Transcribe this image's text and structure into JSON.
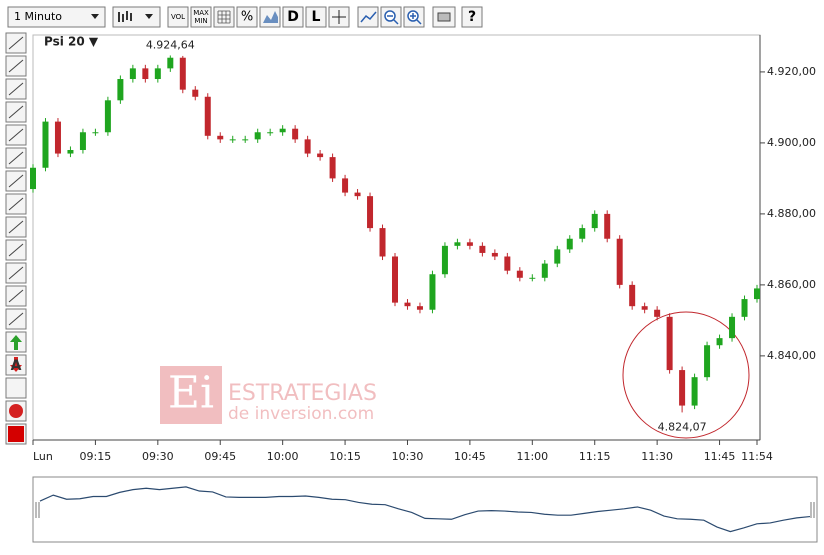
{
  "toolbar": {
    "interval": "1 Minuto",
    "buttons": [
      "VOL",
      "MAX",
      "MIN",
      "%",
      "D",
      "L",
      "?"
    ],
    "side_label": "A",
    "instrument": "Psi 20 ▼"
  },
  "watermark": {
    "logo": "Ei",
    "brand": "ESTRATEGIAS",
    "site": "de inversion.com"
  },
  "chart_data": {
    "type": "candlestick",
    "x": [
      "09:00",
      "09:03",
      "09:06",
      "09:09",
      "09:12",
      "09:15",
      "09:18",
      "09:21",
      "09:24",
      "09:27",
      "09:30",
      "09:33",
      "09:36",
      "09:39",
      "09:42",
      "09:45",
      "09:48",
      "09:51",
      "09:54",
      "09:57",
      "10:00",
      "10:03",
      "10:06",
      "10:09",
      "10:12",
      "10:15",
      "10:18",
      "10:21",
      "10:24",
      "10:27",
      "10:30",
      "10:33",
      "10:36",
      "10:39",
      "10:42",
      "10:45",
      "10:48",
      "10:51",
      "10:54",
      "10:57",
      "11:00",
      "11:03",
      "11:06",
      "11:09",
      "11:12",
      "11:15",
      "11:18",
      "11:21",
      "11:24",
      "11:27",
      "11:30",
      "11:33",
      "11:36",
      "11:39",
      "11:42",
      "11:45",
      "11:48",
      "11:51",
      "11:54"
    ],
    "open": [
      4887,
      4893,
      4906,
      4897,
      4898,
      4903,
      4903,
      4912,
      4918,
      4921,
      4918,
      4921,
      4924,
      4915,
      4913,
      4902,
      4901,
      4901,
      4901,
      4903,
      4903,
      4904,
      4901,
      4897,
      4896,
      4890,
      4886,
      4885,
      4876,
      4868,
      4855,
      4854,
      4853,
      4863,
      4871,
      4872,
      4871,
      4869,
      4868,
      4864,
      4862,
      4862,
      4866,
      4870,
      4873,
      4876,
      4880,
      4873,
      4860,
      4854,
      4853,
      4851,
      4836,
      4826,
      4834,
      4843,
      4845,
      4851,
      4856
    ],
    "high": [
      4894,
      4907,
      4907,
      4899,
      4904,
      4904,
      4913,
      4919,
      4922,
      4922,
      4922,
      4924.64,
      4924.5,
      4916,
      4914,
      4903,
      4902,
      4902,
      4904,
      4904,
      4905,
      4905,
      4902,
      4898,
      4897,
      4891,
      4887,
      4886,
      4877,
      4869,
      4856,
      4855,
      4864,
      4872,
      4873,
      4873,
      4872,
      4870,
      4869,
      4865,
      4863,
      4867,
      4871,
      4874,
      4877,
      4881,
      4881,
      4874,
      4861,
      4855,
      4854,
      4852,
      4837,
      4835,
      4844,
      4846,
      4852,
      4857,
      4860
    ],
    "low": [
      4886,
      4892,
      4896,
      4896,
      4897,
      4902,
      4902,
      4911,
      4917,
      4917,
      4917,
      4920,
      4914,
      4912,
      4901,
      4900,
      4900,
      4900,
      4900,
      4902,
      4902,
      4900,
      4896,
      4895,
      4889,
      4885,
      4884,
      4875,
      4867,
      4854,
      4853,
      4852,
      4852,
      4862,
      4870,
      4870,
      4868,
      4867,
      4863,
      4861,
      4861,
      4861,
      4865,
      4869,
      4872,
      4875,
      4872,
      4859,
      4853,
      4852,
      4850,
      4835,
      4824.07,
      4825,
      4833,
      4842,
      4844,
      4850,
      4855
    ],
    "close": [
      4893,
      4906,
      4897,
      4898,
      4903,
      4903,
      4912,
      4918,
      4921,
      4918,
      4921,
      4924,
      4915,
      4913,
      4902,
      4901,
      4901,
      4901,
      4903,
      4903,
      4904,
      4901,
      4897,
      4896,
      4890,
      4886,
      4885,
      4876,
      4868,
      4855,
      4854,
      4853,
      4863,
      4871,
      4872,
      4871,
      4869,
      4868,
      4864,
      4862,
      4862,
      4866,
      4870,
      4873,
      4876,
      4880,
      4873,
      4860,
      4854,
      4853,
      4851,
      4836,
      4826,
      4834,
      4843,
      4845,
      4851,
      4856,
      4859
    ],
    "up_color": "#1fa51f",
    "down_color": "#c1272d",
    "xlim": [
      "09:00",
      "11:54"
    ],
    "xticks": [
      {
        "value": "09:00",
        "label": "Lun"
      },
      "09:15",
      "09:30",
      "09:45",
      "10:00",
      "10:15",
      "10:30",
      "10:45",
      "11:00",
      "11:15",
      "11:30",
      "11:45",
      "11:54"
    ],
    "ylim": [
      4816.3,
      4930.4
    ],
    "yticks": [
      {
        "value": 4840,
        "label": "4.840,00"
      },
      {
        "value": 4860,
        "label": "4.860,00"
      },
      {
        "value": 4880,
        "label": "4.880,00"
      },
      {
        "value": 4900,
        "label": "4.900,00"
      },
      {
        "value": 4920,
        "label": "4.920,00"
      }
    ],
    "grid": false,
    "annotations": [
      {
        "text": "4.924,64",
        "x": "09:33",
        "y": 4924.64
      },
      {
        "text": "4.824,07",
        "x": "11:36",
        "y": 4824.07
      }
    ]
  }
}
